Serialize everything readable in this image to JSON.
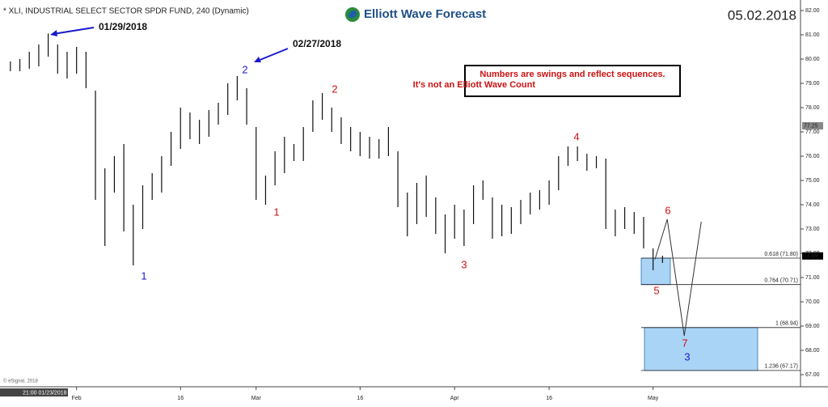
{
  "chart_data": {
    "type": "ohlc",
    "title": "* XLI, INDUSTRIAL SELECT SECTOR SPDR FUND, 240 (Dynamic)",
    "logo": "Elliott Wave Forecast",
    "date": "05.02.2018",
    "first_bar_label": "21:00 01/23/2018",
    "copyright": "© eSignal, 2018",
    "note": [
      "Numbers are swings and reflect sequences.",
      "It's not an Elliott Wave Count"
    ],
    "arrow_labels": [
      "01/29/2018",
      "02/27/2018"
    ],
    "swing_labels": [
      {
        "text": "1",
        "color": "#1a1acc"
      },
      {
        "text": "2",
        "color": "#1a1acc"
      },
      {
        "text": "1",
        "color": "#cc1111"
      },
      {
        "text": "2",
        "color": "#cc1111"
      },
      {
        "text": "3",
        "color": "#cc1111"
      },
      {
        "text": "4",
        "color": "#cc1111"
      },
      {
        "text": "5",
        "color": "#cc1111"
      },
      {
        "text": "6",
        "color": "#cc1111"
      },
      {
        "text": "7",
        "color": "#cc1111"
      },
      {
        "text": "3",
        "color": "#1a1acc"
      }
    ],
    "x": [
      0,
      1,
      2,
      3,
      4,
      5,
      6,
      7,
      8,
      9,
      10,
      11,
      12,
      13,
      14,
      15,
      16,
      17,
      18,
      19,
      20,
      21,
      22,
      23,
      24,
      25,
      26,
      27,
      28,
      29,
      30,
      31,
      32,
      33,
      34,
      35,
      36,
      37,
      38,
      39,
      40,
      41,
      42,
      43,
      44,
      45,
      46,
      47,
      48,
      49,
      50,
      51,
      52,
      53,
      54,
      55,
      56,
      57,
      58,
      59,
      60,
      61,
      62,
      63,
      64,
      65,
      66,
      67,
      68,
      69
    ],
    "high": [
      79.9,
      80.0,
      80.3,
      80.6,
      81.05,
      80.6,
      80.3,
      80.5,
      80.3,
      78.7,
      75.5,
      76.0,
      76.5,
      74.0,
      74.8,
      75.3,
      76.0,
      77.0,
      78.0,
      77.8,
      77.5,
      77.9,
      78.2,
      79.0,
      79.3,
      78.8,
      77.2,
      75.2,
      76.2,
      76.8,
      76.5,
      77.2,
      78.3,
      78.6,
      78.0,
      77.6,
      77.2,
      77.0,
      76.8,
      76.7,
      77.2,
      76.2,
      74.5,
      74.9,
      75.2,
      74.3,
      73.6,
      74.0,
      73.8,
      74.8,
      75.0,
      74.3,
      74.0,
      73.9,
      74.2,
      74.5,
      74.6,
      75.0,
      76.0,
      76.4,
      76.4,
      76.1,
      76.0,
      75.9,
      73.8,
      73.9,
      73.7,
      73.5,
      72.2,
      71.9
    ],
    "low": [
      79.5,
      79.5,
      79.6,
      79.7,
      80.1,
      79.4,
      79.2,
      79.4,
      78.8,
      74.2,
      72.3,
      74.5,
      72.9,
      71.5,
      73.0,
      74.2,
      74.5,
      75.6,
      76.3,
      76.7,
      76.5,
      76.8,
      77.3,
      77.7,
      78.3,
      77.3,
      74.2,
      74.0,
      74.8,
      75.3,
      75.8,
      75.8,
      77.0,
      77.5,
      77.0,
      76.5,
      76.2,
      76.0,
      75.9,
      75.9,
      76.0,
      73.9,
      72.7,
      73.2,
      73.5,
      72.8,
      72.0,
      72.6,
      72.3,
      73.2,
      74.2,
      72.6,
      72.7,
      72.8,
      73.2,
      73.6,
      73.8,
      74.0,
      74.6,
      75.6,
      75.8,
      75.4,
      75.5,
      73.0,
      72.7,
      73.0,
      72.8,
      72.2,
      71.3,
      71.6
    ],
    "color": "#111111",
    "projection": {
      "x": [
        68.2,
        69.5,
        71.3,
        73.1
      ],
      "y": [
        71.75,
        73.4,
        68.6,
        73.3
      ],
      "color": "#333333"
    },
    "fib_levels": [
      {
        "label": "0.618 (71.80)",
        "value": 71.8
      },
      {
        "label": "0.764 (70.71)",
        "value": 70.71
      },
      {
        "label": "1 (68.94)",
        "value": 68.94
      },
      {
        "label": "1.236 (67.17)",
        "value": 67.17
      }
    ],
    "zone_color": "#a9d4f5",
    "price_markers": [
      {
        "label": "77.25",
        "value": 77.25,
        "color": "#888888"
      },
      {
        "label": "71.89",
        "value": 71.89,
        "color": "#000000"
      }
    ],
    "xlim": [
      -1.1,
      83.6
    ],
    "xticks": [
      {
        "value": 7,
        "label": "Feb"
      },
      {
        "value": 18,
        "label": "16"
      },
      {
        "value": 26,
        "label": "Mar"
      },
      {
        "value": 37,
        "label": "16"
      },
      {
        "value": 47,
        "label": "Apr"
      },
      {
        "value": 57,
        "label": "16"
      },
      {
        "value": 68,
        "label": "May"
      }
    ],
    "ylim": [
      66.5,
      82.25
    ],
    "yticks": [
      {
        "value": 67,
        "label": "67.00"
      },
      {
        "value": 68,
        "label": "68.00"
      },
      {
        "value": 69,
        "label": "69.00"
      },
      {
        "value": 70,
        "label": "70.00"
      },
      {
        "value": 71,
        "label": "71.00"
      },
      {
        "value": 72,
        "label": "72.00"
      },
      {
        "value": 73,
        "label": "73.00"
      },
      {
        "value": 74,
        "label": "74.00"
      },
      {
        "value": 75,
        "label": "75.00"
      },
      {
        "value": 76,
        "label": "76.00"
      },
      {
        "value": 77,
        "label": "77.00"
      },
      {
        "value": 78,
        "label": "78.00"
      },
      {
        "value": 79,
        "label": "79.00"
      },
      {
        "value": 80,
        "label": "80.00"
      },
      {
        "value": 81,
        "label": "81.00"
      },
      {
        "value": 82,
        "label": "82.00"
      }
    ]
  }
}
